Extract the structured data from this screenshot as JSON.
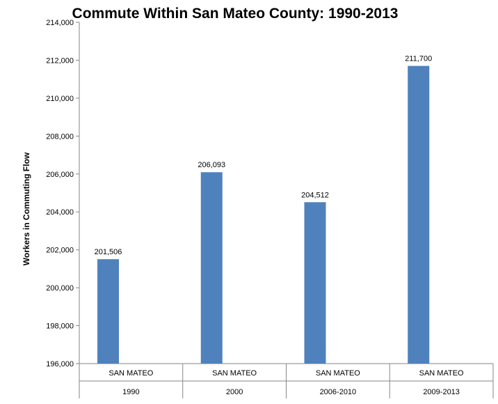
{
  "chart_data": {
    "type": "bar",
    "title": "Commute Within San Mateo County: 1990-2013",
    "xlabel": "",
    "ylabel": "Workers in Commuting Flow",
    "ylim": [
      196000,
      214000
    ],
    "ytick_step": 2000,
    "yticks": [
      "196,000",
      "198,000",
      "200,000",
      "202,000",
      "204,000",
      "206,000",
      "208,000",
      "210,000",
      "212,000",
      "214,000"
    ],
    "categories": [
      {
        "name": "SAN MATEO",
        "group": "1990"
      },
      {
        "name": "SAN MATEO",
        "group": "2000"
      },
      {
        "name": "SAN MATEO",
        "group": "2006-2010"
      },
      {
        "name": "SAN MATEO",
        "group": "2009-2013"
      }
    ],
    "values": [
      201506,
      206093,
      204512,
      211700
    ],
    "data_labels": [
      "201,506",
      "206,093",
      "204,512",
      "211,700"
    ],
    "bar_color": "#4F81BD",
    "grid": false,
    "legend": "none"
  }
}
